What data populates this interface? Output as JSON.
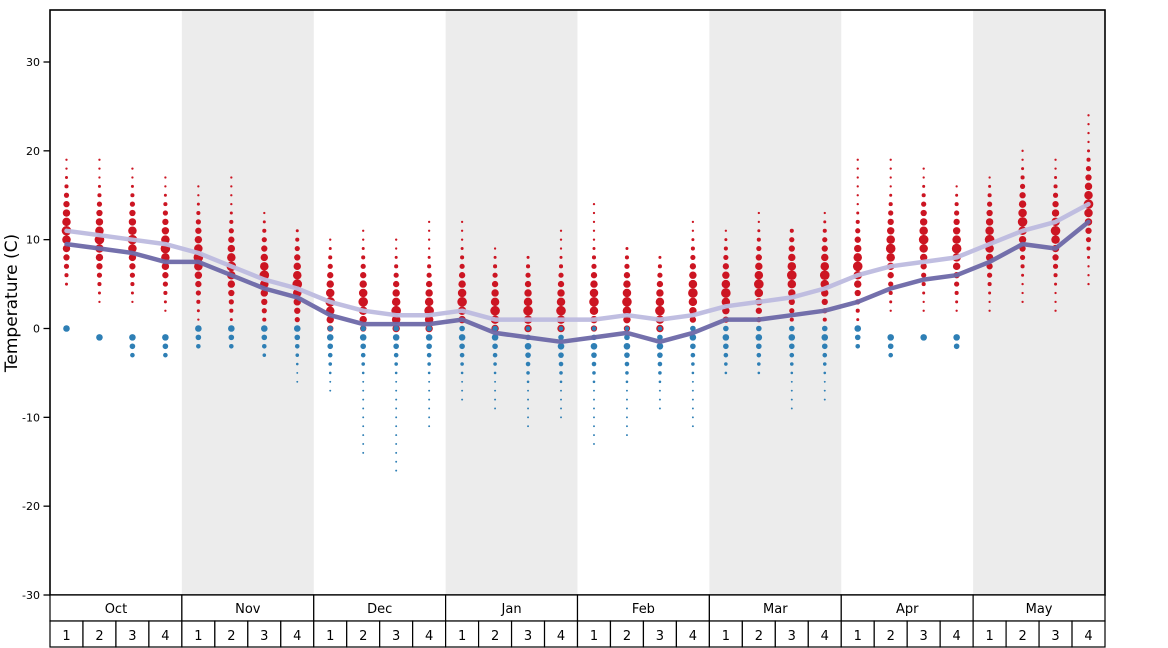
{
  "chart_data": {
    "type": "scatter",
    "title": "",
    "ylabel": "Temperature (C)",
    "ylim": [
      -32,
      36
    ],
    "yticks": [
      -30,
      -20,
      -10,
      0,
      10,
      20,
      30
    ],
    "grid": false,
    "legend": "none",
    "background_band_color": "#ececec",
    "x_axis": {
      "months": [
        "Oct",
        "Nov",
        "Dec",
        "Jan",
        "Feb",
        "Mar",
        "Apr",
        "May"
      ],
      "weeks": [
        "1",
        "2",
        "3",
        "4"
      ],
      "shaded_months": [
        "Nov",
        "Jan",
        "Mar",
        "May"
      ]
    },
    "lines": [
      {
        "name": "average-high-line",
        "color": "#bdbadf",
        "values": [
          11,
          10.5,
          10,
          9.5,
          8.5,
          7,
          5.5,
          4.5,
          3,
          2,
          1.5,
          1.5,
          2,
          1,
          1,
          1,
          1,
          1.5,
          1,
          1.5,
          2.5,
          3,
          3.5,
          4.5,
          6,
          7,
          7.5,
          8,
          9.5,
          11,
          12,
          14
        ]
      },
      {
        "name": "average-low-line",
        "color": "#6d68a8",
        "values": [
          9.5,
          9,
          8.5,
          7.5,
          7.5,
          6,
          4.5,
          3.5,
          1.5,
          0.5,
          0.5,
          0.5,
          1,
          -0.5,
          -1,
          -1.5,
          -1,
          -0.5,
          -1.5,
          -0.5,
          1,
          1,
          1.5,
          2,
          3,
          4.5,
          5.5,
          6,
          7.5,
          9.5,
          9,
          12
        ]
      }
    ],
    "dot_series": [
      {
        "name": "above-freezing-observations",
        "color": "#cc1522",
        "note": "distributions are [min_temp, max_temp, mode_temp] per week; dot size peaks at mode",
        "distributions": [
          [
            5,
            19,
            11
          ],
          [
            3,
            19,
            10
          ],
          [
            3,
            18,
            10
          ],
          [
            2,
            17,
            9
          ],
          [
            1,
            16,
            8
          ],
          [
            1,
            17,
            7
          ],
          [
            1,
            13,
            6
          ],
          [
            0,
            11,
            5
          ],
          [
            0,
            10,
            3
          ],
          [
            0,
            11,
            3
          ],
          [
            0,
            10,
            2
          ],
          [
            0,
            12,
            2
          ],
          [
            1,
            12,
            3
          ],
          [
            0,
            9,
            2
          ],
          [
            0,
            8,
            2
          ],
          [
            0,
            11,
            2
          ],
          [
            0,
            14,
            3
          ],
          [
            0,
            9,
            3
          ],
          [
            0,
            8,
            2
          ],
          [
            0,
            12,
            4
          ],
          [
            1,
            11,
            4
          ],
          [
            1,
            13,
            5
          ],
          [
            1,
            11,
            6
          ],
          [
            1,
            13,
            6
          ],
          [
            1,
            19,
            7
          ],
          [
            2,
            19,
            9
          ],
          [
            2,
            18,
            10
          ],
          [
            2,
            16,
            9
          ],
          [
            2,
            17,
            10
          ],
          [
            3,
            20,
            12
          ],
          [
            2,
            19,
            11
          ],
          [
            5,
            24,
            14
          ]
        ]
      },
      {
        "name": "below-freezing-observations",
        "color": "#2e7fb5",
        "note": "distributions are [min_temp, max_temp, mode_temp] per week; null = no dots",
        "distributions": [
          [
            0,
            0,
            0
          ],
          [
            -1,
            -1,
            -1
          ],
          [
            -3,
            -1,
            -1
          ],
          [
            -3,
            -1,
            -1
          ],
          [
            -2,
            0,
            0
          ],
          [
            -2,
            0,
            0
          ],
          [
            -3,
            0,
            0
          ],
          [
            -6,
            0,
            0
          ],
          [
            -7,
            0,
            -1
          ],
          [
            -14,
            0,
            -1
          ],
          [
            -16,
            0,
            -1
          ],
          [
            -11,
            0,
            -1
          ],
          [
            -8,
            0,
            -1
          ],
          [
            -9,
            0,
            -1
          ],
          [
            -11,
            0,
            -2
          ],
          [
            -10,
            0,
            -2
          ],
          [
            -13,
            0,
            -2
          ],
          [
            -12,
            0,
            -2
          ],
          [
            -9,
            0,
            -2
          ],
          [
            -11,
            0,
            -1
          ],
          [
            -5,
            0,
            -1
          ],
          [
            -5,
            0,
            -1
          ],
          [
            -9,
            0,
            -1
          ],
          [
            -8,
            0,
            -1
          ],
          [
            -2,
            0,
            0
          ],
          [
            -3,
            -1,
            -1
          ],
          [
            -1,
            -1,
            -1
          ],
          [
            -2,
            -1,
            -1
          ],
          null,
          null,
          null,
          null
        ]
      }
    ]
  }
}
